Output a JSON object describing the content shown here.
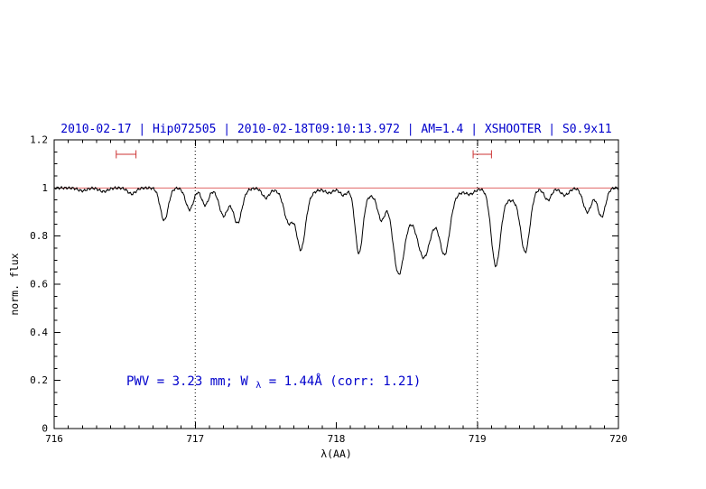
{
  "header": {
    "title": "2010-02-17 | Hip072505 | 2010-02-18T09:10:13.972 | AM=1.4 | XSHOOTER | S0.9x11"
  },
  "annotation": {
    "part1": "PWV = 3.23 mm; W",
    "sub": "λ",
    "part2": " = 1.44Å (corr: 1.21)",
    "full_text": "PWV = 3.23 mm; W_λ = 1.44Å (corr: 1.21)"
  },
  "colors": {
    "title_blue": "#0000cc",
    "annotation_blue": "#0000cc",
    "continuum_red": "#e06666",
    "marker_red": "#cc3333",
    "spectrum_black": "#000000",
    "axis_black": "#000000",
    "background": "#ffffff"
  },
  "chart_data": {
    "type": "line",
    "title": "2010-02-17 | Hip072505 | 2010-02-18T09:10:13.972 | AM=1.4 | XSHOOTER | S0.9x11",
    "xlabel": "λ(AA)",
    "ylabel": "norm. flux",
    "xlim": [
      716,
      720
    ],
    "ylim": [
      0,
      1.2
    ],
    "x_tick_values": [
      716,
      717,
      718,
      719,
      720
    ],
    "x_tick_labels": [
      "716",
      "717",
      "718",
      "719",
      "720"
    ],
    "y_tick_values": [
      0,
      0.2,
      0.4,
      0.6,
      0.8,
      1,
      1.2
    ],
    "y_tick_labels": [
      "0",
      "0.2",
      "0.4",
      "0.6",
      "0.8",
      "1",
      "1.2"
    ],
    "x_minor_step": 0.1,
    "y_minor_step": 0.05,
    "y_major_step": 0.2,
    "grid": "off",
    "dotted_vlines": [
      717,
      719
    ],
    "continuum": 1.0,
    "range_markers": [
      {
        "x_start": 716.44,
        "x_end": 716.58,
        "y": 1.14
      },
      {
        "x_start": 718.97,
        "x_end": 719.1,
        "y": 1.14
      }
    ],
    "annotation_text": "PWV = 3.23 mm; W_λ = 1.44Å (corr: 1.21)",
    "sampling_step": 0.004,
    "noise_amplitude": 0.004,
    "absorption_lines_columns": [
      "center_AA",
      "depth",
      "sigma_AA"
    ],
    "absorption_lines": [
      [
        716.2,
        0.012,
        0.03
      ],
      [
        716.35,
        0.015,
        0.03
      ],
      [
        716.55,
        0.025,
        0.028
      ],
      [
        716.78,
        0.135,
        0.028
      ],
      [
        716.96,
        0.09,
        0.028
      ],
      [
        717.07,
        0.07,
        0.025
      ],
      [
        717.2,
        0.1,
        0.03
      ],
      [
        717.3,
        0.13,
        0.03
      ],
      [
        717.25,
        0.02,
        0.08
      ],
      [
        717.5,
        0.04,
        0.025
      ],
      [
        717.66,
        0.1,
        0.03
      ],
      [
        717.75,
        0.2,
        0.03
      ],
      [
        717.72,
        0.06,
        0.08
      ],
      [
        717.95,
        0.02,
        0.03
      ],
      [
        718.05,
        0.03,
        0.025
      ],
      [
        718.16,
        0.26,
        0.027
      ],
      [
        718.32,
        0.11,
        0.026
      ],
      [
        718.24,
        0.03,
        0.06
      ],
      [
        718.44,
        0.3,
        0.04
      ],
      [
        718.62,
        0.14,
        0.04
      ],
      [
        718.77,
        0.2,
        0.034
      ],
      [
        718.62,
        0.15,
        0.13
      ],
      [
        718.95,
        0.02,
        0.03
      ],
      [
        719.13,
        0.3,
        0.032
      ],
      [
        719.34,
        0.24,
        0.032
      ],
      [
        719.24,
        0.05,
        0.09
      ],
      [
        719.5,
        0.05,
        0.025
      ],
      [
        719.62,
        0.03,
        0.03
      ],
      [
        719.78,
        0.1,
        0.03
      ],
      [
        719.88,
        0.12,
        0.028
      ]
    ]
  }
}
